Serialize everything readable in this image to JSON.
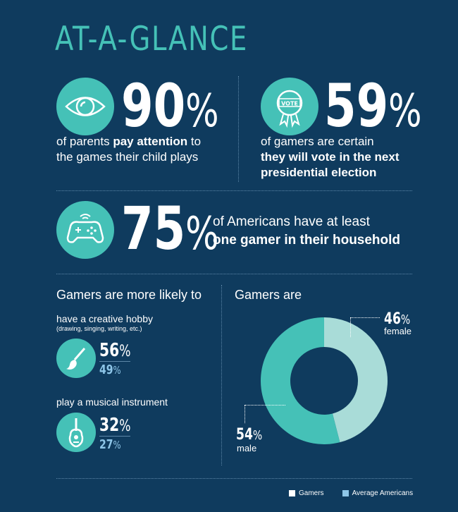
{
  "title": "AT-A-GLANCE",
  "stat1": {
    "value": "90",
    "pct": "%",
    "text_a": "of parents ",
    "text_bold": "pay attention",
    "text_b": " to",
    "text_c": "the games their child plays"
  },
  "stat2": {
    "value": "59",
    "pct": "%",
    "text_a": "of gamers are certain",
    "text_bold1": "they will vote in the next",
    "text_bold2": "presidential election",
    "badge": "VOTE"
  },
  "stat3": {
    "value": "75",
    "pct": "%",
    "text_a": "of Americans have at least",
    "text_bold": "one gamer in their household"
  },
  "likely": {
    "heading": "Gamers are more likely to",
    "items": [
      {
        "label": "have a creative hobby",
        "sub": "(drawing, singing, writing, etc.)",
        "gamers": "56",
        "average": "49",
        "pct": "%"
      },
      {
        "label": "play a musical instrument",
        "sub": "",
        "gamers": "32",
        "average": "27",
        "pct": "%"
      }
    ]
  },
  "gender": {
    "heading": "Gamers are",
    "female_value": "46",
    "female_label": "female",
    "male_value": "54",
    "male_label": "male",
    "pct": "%"
  },
  "legend": {
    "gamers": "Gamers",
    "average": "Average Americans"
  },
  "colors": {
    "background": "#0f3b5e",
    "teal": "#45c1b7",
    "light_teal": "#a9dcd8",
    "light_blue": "#8ec6e8"
  }
}
